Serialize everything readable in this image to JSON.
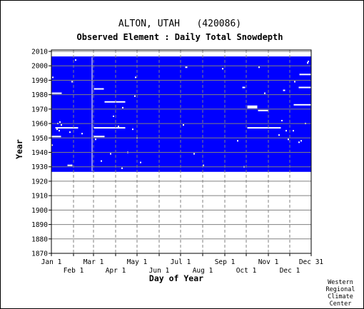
{
  "chart_data": {
    "type": "heatmap",
    "title": "ALTON, UTAH   (420086)",
    "subtitle": "Observed Element : Daily Total Snowdepth",
    "xlabel": "Day of Year",
    "ylabel": "Year",
    "xlim": [
      1,
      365
    ],
    "ylim": [
      1870,
      2011
    ],
    "x_ticks_top_row": [
      {
        "label": "Jan 1",
        "day": 1
      },
      {
        "label": "Mar 1",
        "day": 60
      },
      {
        "label": "May 1",
        "day": 121
      },
      {
        "label": "Jul 1",
        "day": 182
      },
      {
        "label": "Sep 1",
        "day": 244
      },
      {
        "label": "Nov 1",
        "day": 305
      },
      {
        "label": "Dec 31",
        "day": 365
      }
    ],
    "x_ticks_bottom_row": [
      {
        "label": "Feb 1",
        "day": 32
      },
      {
        "label": "Apr 1",
        "day": 91
      },
      {
        "label": "Jun 1",
        "day": 152
      },
      {
        "label": "Aug 1",
        "day": 213
      },
      {
        "label": "Oct 1",
        "day": 274
      },
      {
        "label": "Dec 1",
        "day": 335
      }
    ],
    "y_ticks": [
      1870,
      1880,
      1890,
      1900,
      1910,
      1920,
      1930,
      1940,
      1950,
      1960,
      1970,
      1980,
      1990,
      2000,
      2010
    ],
    "grid": true,
    "legend": "none",
    "colors": {
      "observed": "#0000ff",
      "missing": "#ffffff",
      "grid": "#808080"
    },
    "observed_block": {
      "day_start": 1,
      "day_end": 365,
      "year_start": 1927,
      "year_end": 2006
    },
    "missing_segments": [
      {
        "year": 1981,
        "day_start": 1,
        "day_end": 15
      },
      {
        "year": 1951,
        "day_start": 1,
        "day_end": 14
      },
      {
        "year": 1957,
        "day_start": 7,
        "day_end": 38
      },
      {
        "year": 1931,
        "day_start": 24,
        "day_end": 30
      },
      {
        "year": 1984,
        "day_start": 61,
        "day_end": 74
      },
      {
        "year": 1975,
        "day_start": 76,
        "day_end": 104
      },
      {
        "year": 1951,
        "day_start": 61,
        "day_end": 75
      },
      {
        "year": 1957,
        "day_start": 61,
        "day_end": 104
      },
      {
        "year": 1999,
        "day_start": 189,
        "day_end": 191
      },
      {
        "year": 1985,
        "day_start": 269,
        "day_end": 272
      },
      {
        "year": 1972,
        "day_start": 276,
        "day_end": 289
      },
      {
        "year": 1971,
        "day_start": 276,
        "day_end": 289
      },
      {
        "year": 1969,
        "day_start": 291,
        "day_end": 305
      },
      {
        "year": 1957,
        "day_start": 276,
        "day_end": 322
      },
      {
        "year": 1994,
        "day_start": 349,
        "day_end": 365
      },
      {
        "year": 1985,
        "day_start": 348,
        "day_end": 365
      },
      {
        "year": 1973,
        "day_start": 341,
        "day_end": 365
      },
      {
        "year": 1983,
        "day_start": 326,
        "day_end": 328
      }
    ],
    "missing_days_vertical": [
      {
        "day": 58,
        "year_start": 1927,
        "year_end": 2006
      }
    ],
    "missing_points": [
      {
        "year": 2004,
        "day": 35
      },
      {
        "year": 1992,
        "day": 3
      },
      {
        "year": 1989,
        "day": 30
      },
      {
        "year": 1961,
        "day": 13
      },
      {
        "year": 1960,
        "day": 10
      },
      {
        "year": 1959,
        "day": 15
      },
      {
        "year": 1956,
        "day": 9
      },
      {
        "year": 1955,
        "day": 12
      },
      {
        "year": 1954,
        "day": 27
      },
      {
        "year": 1953,
        "day": 44
      },
      {
        "year": 1949,
        "day": 63
      },
      {
        "year": 1945,
        "day": 2
      },
      {
        "year": 1939,
        "day": 84
      },
      {
        "year": 1934,
        "day": 71
      },
      {
        "year": 1931,
        "day": 29
      },
      {
        "year": 1992,
        "day": 119
      },
      {
        "year": 1979,
        "day": 118
      },
      {
        "year": 1971,
        "day": 101
      },
      {
        "year": 1965,
        "day": 88
      },
      {
        "year": 1958,
        "day": 95
      },
      {
        "year": 1956,
        "day": 115
      },
      {
        "year": 1950,
        "day": 121
      },
      {
        "year": 1940,
        "day": 108
      },
      {
        "year": 1933,
        "day": 126
      },
      {
        "year": 1929,
        "day": 100
      },
      {
        "year": 1959,
        "day": 186
      },
      {
        "year": 1939,
        "day": 201
      },
      {
        "year": 1931,
        "day": 214
      },
      {
        "year": 1998,
        "day": 241
      },
      {
        "year": 1948,
        "day": 262
      },
      {
        "year": 1930,
        "day": 271
      },
      {
        "year": 1999,
        "day": 292
      },
      {
        "year": 1981,
        "day": 300
      },
      {
        "year": 1962,
        "day": 324
      },
      {
        "year": 1955,
        "day": 330
      },
      {
        "year": 1952,
        "day": 320
      },
      {
        "year": 1948,
        "day": 351
      },
      {
        "year": 1947,
        "day": 348
      },
      {
        "year": 2003,
        "day": 361
      },
      {
        "year": 2002,
        "day": 360
      },
      {
        "year": 1989,
        "day": 342
      },
      {
        "year": 1960,
        "day": 357
      },
      {
        "year": 1955,
        "day": 340
      },
      {
        "year": 1949,
        "day": 333
      }
    ]
  },
  "credit": [
    "Western",
    "Regional",
    "Climate",
    "Center"
  ]
}
